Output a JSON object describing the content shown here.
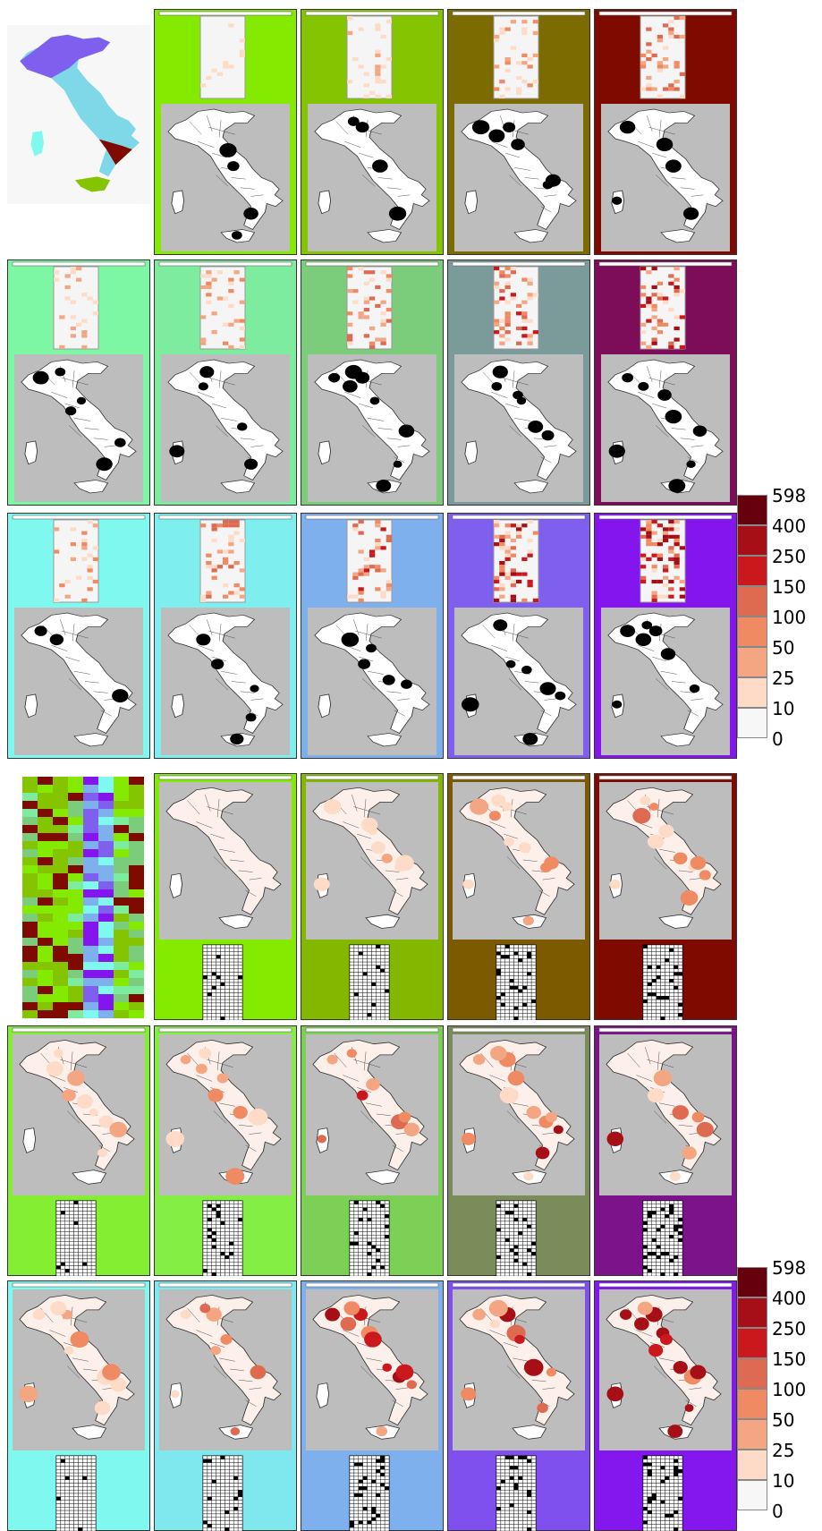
{
  "legend": {
    "labels": [
      "598",
      "400",
      "250",
      "150",
      "100",
      "50",
      "25",
      "10",
      "0"
    ],
    "colors": [
      "#67000d",
      "#a50f15",
      "#cb181d",
      "#de6a52",
      "#ef8a62",
      "#f4a582",
      "#fddbc7",
      "#f7f7f7"
    ]
  },
  "section_a": {
    "overview_label": "cluster-map-overview",
    "rows": [
      [
        "#84ea00",
        "#84c400",
        "#7b6b00",
        "#7f0a00"
      ],
      [
        "#7ef7a4",
        "#7eec9f",
        "#7bcc7b",
        "#7b9b9b",
        "#7d0d58"
      ],
      [
        "#7ff8f0",
        "#7feeee",
        "#7fb0ee",
        "#7f60ee",
        "#8415ee"
      ]
    ]
  },
  "section_b": {
    "rows": [
      [
        "#84ea00",
        "#84b800",
        "#7b5a00",
        "#7f0a00"
      ],
      [
        "#84ee33",
        "#84ee44",
        "#7bd055",
        "#7b8b5a",
        "#7d138a"
      ],
      [
        "#7ff8f0",
        "#7fe8ee",
        "#7fb0ee",
        "#7f50ee",
        "#8416ee"
      ]
    ]
  }
}
